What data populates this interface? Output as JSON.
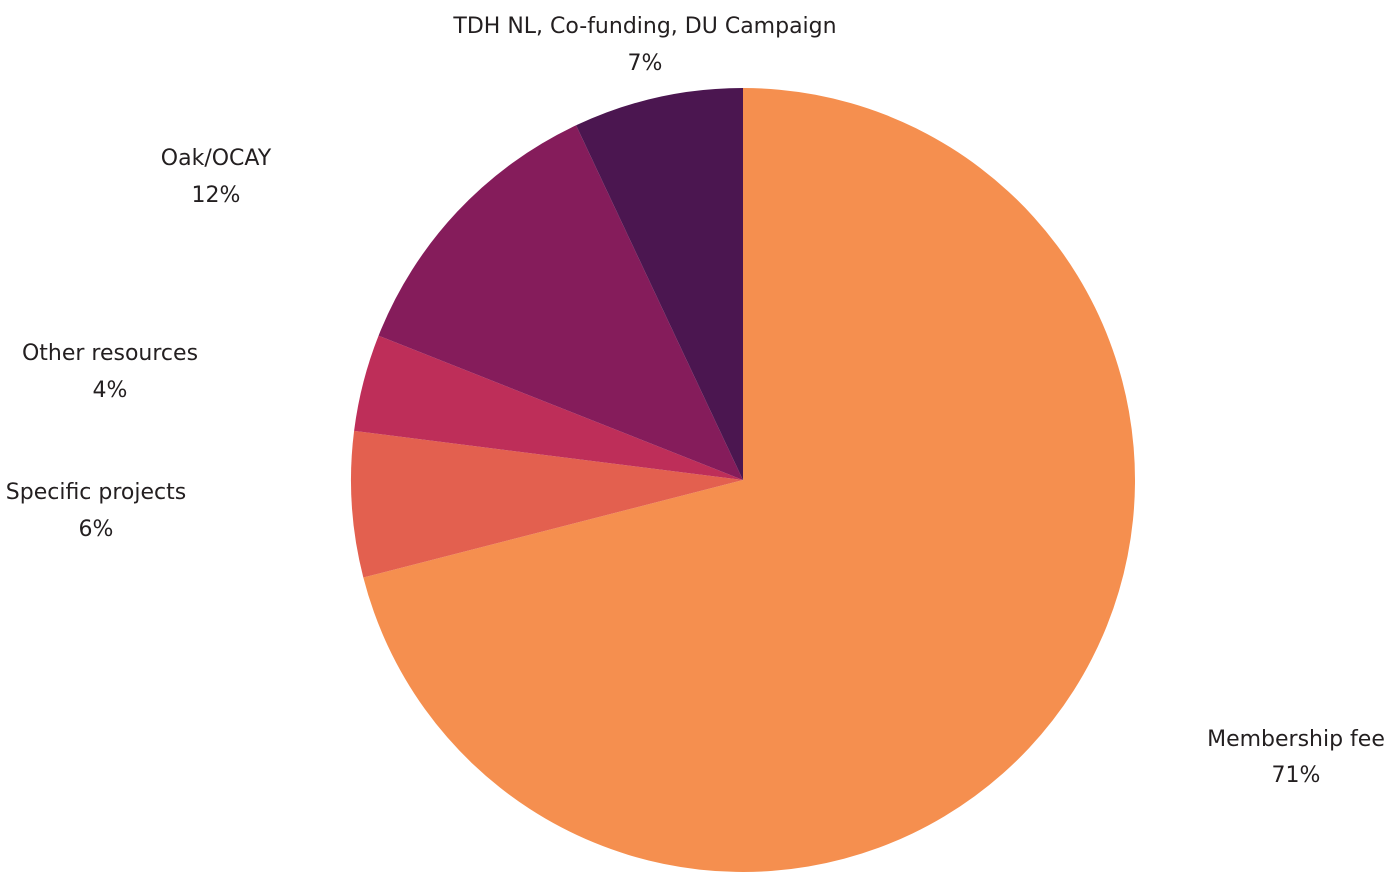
{
  "chart_data": {
    "type": "pie",
    "start_angle_deg": 0,
    "direction": "clockwise",
    "slices": [
      {
        "label": "Membership fee",
        "value_label": "71%",
        "value": 71,
        "color": "#f58f4f"
      },
      {
        "label": "Specific projects",
        "value_label": "6%",
        "value": 6,
        "color": "#e3604f"
      },
      {
        "label": "Other resources",
        "value_label": "4%",
        "value": 4,
        "color": "#be2e59"
      },
      {
        "label": "Oak/OCAY",
        "value_label": "12%",
        "value": 12,
        "color": "#851c5b"
      },
      {
        "label": "TDH NL, Co-funding, DU Campaign",
        "value_label": "7%",
        "value": 7,
        "color": "#4b1650"
      }
    ]
  }
}
